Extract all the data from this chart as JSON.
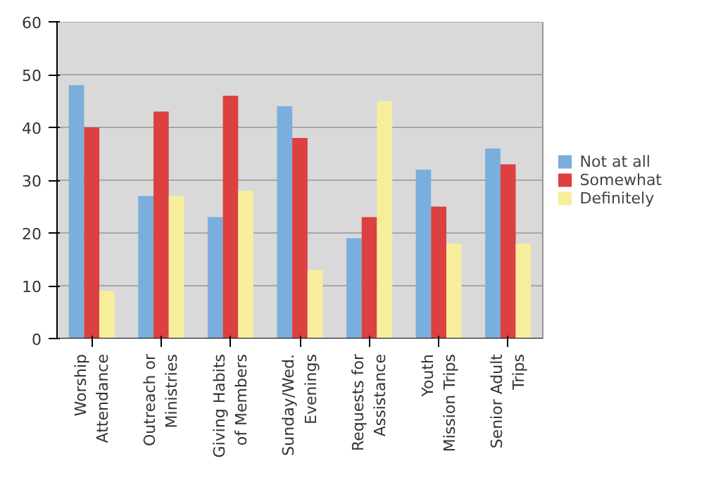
{
  "chart_data": {
    "type": "bar",
    "categories": [
      "Worship\nAttendance",
      "Outreach or\nMinistries",
      "Giving Habits\nof Members",
      "Sunday/Wed.\nEvenings",
      "Requests for\nAssistance",
      "Youth\nMission Trips",
      "Senior Adult\nTrips"
    ],
    "series": [
      {
        "name": "Not at all",
        "color": "#7aaedc",
        "values": [
          48,
          27,
          23,
          44,
          19,
          32,
          36
        ]
      },
      {
        "name": "Somewhat",
        "color": "#dc4040",
        "values": [
          40,
          43,
          46,
          38,
          23,
          25,
          33
        ]
      },
      {
        "name": "Definitely",
        "color": "#f7ee9c",
        "values": [
          9,
          27,
          28,
          13,
          45,
          18,
          18
        ]
      }
    ],
    "ylim": [
      0,
      60
    ],
    "yticks": [
      0,
      10,
      20,
      30,
      40,
      50,
      60
    ],
    "grid": "y",
    "legend": "right"
  }
}
